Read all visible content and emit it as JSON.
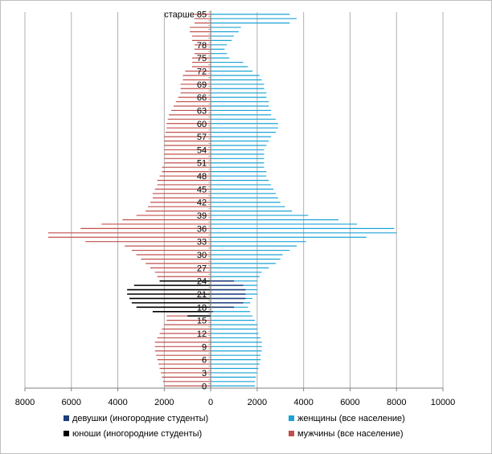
{
  "chart_data": {
    "type": "bar",
    "orientation": "horizontal",
    "layout": "population-pyramid",
    "grid": true,
    "xlim": [
      -8000,
      10000
    ],
    "x_ticks": [
      "8000",
      "6000",
      "4000",
      "2000",
      "0",
      "2000",
      "4000",
      "6000",
      "8000",
      "10000"
    ],
    "y_tick_labels": [
      "0",
      "3",
      "6",
      "9",
      "12",
      "15",
      "18",
      "21",
      "24",
      "27",
      "30",
      "33",
      "36",
      "39",
      "42",
      "45",
      "48",
      "51",
      "54",
      "57",
      "60",
      "63",
      "66",
      "69",
      "72",
      "75",
      "78",
      "старше 85"
    ],
    "categories": [
      "0",
      "1",
      "2",
      "3",
      "4",
      "5",
      "6",
      "7",
      "8",
      "9",
      "10",
      "11",
      "12",
      "13",
      "14",
      "15",
      "16",
      "17",
      "18",
      "19",
      "20",
      "21",
      "22",
      "23",
      "24",
      "25",
      "26",
      "27",
      "28",
      "29",
      "30",
      "31",
      "32",
      "33",
      "34",
      "35",
      "36",
      "37",
      "38",
      "39",
      "40",
      "41",
      "42",
      "43",
      "44",
      "45",
      "46",
      "47",
      "48",
      "49",
      "50",
      "51",
      "52",
      "53",
      "54",
      "55",
      "56",
      "57",
      "58",
      "59",
      "60",
      "61",
      "62",
      "63",
      "64",
      "65",
      "66",
      "67",
      "68",
      "69",
      "70",
      "71",
      "72",
      "73",
      "74",
      "75",
      "76",
      "77",
      "78",
      "79",
      "80",
      "81",
      "82",
      "83",
      "84",
      "старше 85"
    ],
    "series": [
      {
        "name": "девушки (иногородние студенты)",
        "color": "#1f3d7a",
        "side": "right",
        "values": [
          0,
          0,
          0,
          0,
          0,
          0,
          0,
          0,
          0,
          0,
          0,
          0,
          0,
          0,
          0,
          0,
          0,
          100,
          1000,
          1400,
          1500,
          1500,
          1500,
          1400,
          1000,
          0,
          0,
          0,
          0,
          0,
          0,
          0,
          0,
          0,
          0,
          0,
          0,
          0,
          0,
          0,
          0,
          0,
          0,
          0,
          0,
          0,
          0,
          0,
          0,
          0,
          0,
          0,
          0,
          0,
          0,
          0,
          0,
          0,
          0,
          0,
          0,
          0,
          0,
          0,
          0,
          0,
          0,
          0,
          0,
          0,
          0,
          0,
          0,
          0,
          0,
          0,
          0,
          0,
          0,
          0,
          0,
          0,
          0,
          0,
          0,
          0
        ]
      },
      {
        "name": "женщины (все население)",
        "color": "#1aa4d6",
        "side": "right",
        "values": [
          1900,
          1900,
          1950,
          2000,
          2050,
          2100,
          2150,
          2150,
          2200,
          2200,
          2200,
          2150,
          2050,
          2000,
          2000,
          1900,
          1800,
          1700,
          1600,
          1700,
          1800,
          2000,
          2000,
          2000,
          2000,
          2100,
          2200,
          2500,
          2800,
          3000,
          3100,
          3400,
          3700,
          4100,
          6700,
          8000,
          7900,
          6300,
          5500,
          4200,
          3500,
          3200,
          3000,
          2900,
          2800,
          2700,
          2600,
          2500,
          2400,
          2400,
          2300,
          2300,
          2300,
          2300,
          2300,
          2400,
          2500,
          2600,
          2800,
          2900,
          2900,
          2800,
          2600,
          2600,
          2500,
          2500,
          2400,
          2400,
          2300,
          2300,
          2200,
          2100,
          1800,
          1600,
          1400,
          800,
          700,
          600,
          700,
          900,
          1000,
          1200,
          1300,
          3400,
          3700,
          3400
        ]
      },
      {
        "name": "юноши (иногородние студенты)",
        "color": "#000000",
        "side": "left",
        "values": [
          0,
          0,
          0,
          0,
          0,
          0,
          0,
          0,
          0,
          0,
          0,
          0,
          0,
          0,
          0,
          0,
          1000,
          2500,
          3200,
          3400,
          3500,
          3600,
          3600,
          3300,
          2200,
          0,
          0,
          0,
          0,
          0,
          0,
          0,
          0,
          0,
          0,
          0,
          0,
          0,
          0,
          0,
          0,
          0,
          0,
          0,
          0,
          0,
          0,
          0,
          0,
          0,
          0,
          0,
          0,
          0,
          0,
          0,
          0,
          0,
          0,
          0,
          0,
          0,
          0,
          0,
          0,
          0,
          0,
          0,
          0,
          0,
          0,
          0,
          0,
          0,
          0,
          0,
          0,
          0,
          0,
          0,
          0,
          0,
          0,
          0,
          0,
          0
        ]
      },
      {
        "name": "мужчины (все население)",
        "color": "#c0504d",
        "side": "left",
        "values": [
          2000,
          2050,
          2100,
          2150,
          2200,
          2250,
          2300,
          2350,
          2400,
          2400,
          2400,
          2300,
          2200,
          2100,
          2000,
          1900,
          1900,
          1900,
          2000,
          2000,
          2100,
          2100,
          2100,
          2100,
          2200,
          2300,
          2400,
          2600,
          2800,
          3000,
          3200,
          3400,
          3700,
          5400,
          7000,
          7000,
          5600,
          4700,
          3800,
          3200,
          2800,
          2700,
          2600,
          2500,
          2500,
          2400,
          2300,
          2300,
          2200,
          2100,
          2100,
          2000,
          2000,
          2000,
          2000,
          2000,
          2000,
          2000,
          1950,
          1900,
          1900,
          1850,
          1800,
          1700,
          1600,
          1500,
          1400,
          1300,
          1300,
          1300,
          1200,
          1200,
          1100,
          800,
          800,
          800,
          700,
          700,
          700,
          800,
          800,
          900,
          900,
          700,
          700,
          700
        ]
      }
    ]
  },
  "legend": {
    "items": [
      {
        "label": "девушки (иногородние студенты)",
        "color": "#1f3d7a"
      },
      {
        "label": "женщины (все население)",
        "color": "#1aa4d6"
      },
      {
        "label": "юноши (иногородние студенты)",
        "color": "#000000"
      },
      {
        "label": "мужчины (все население)",
        "color": "#c0504d"
      }
    ]
  }
}
